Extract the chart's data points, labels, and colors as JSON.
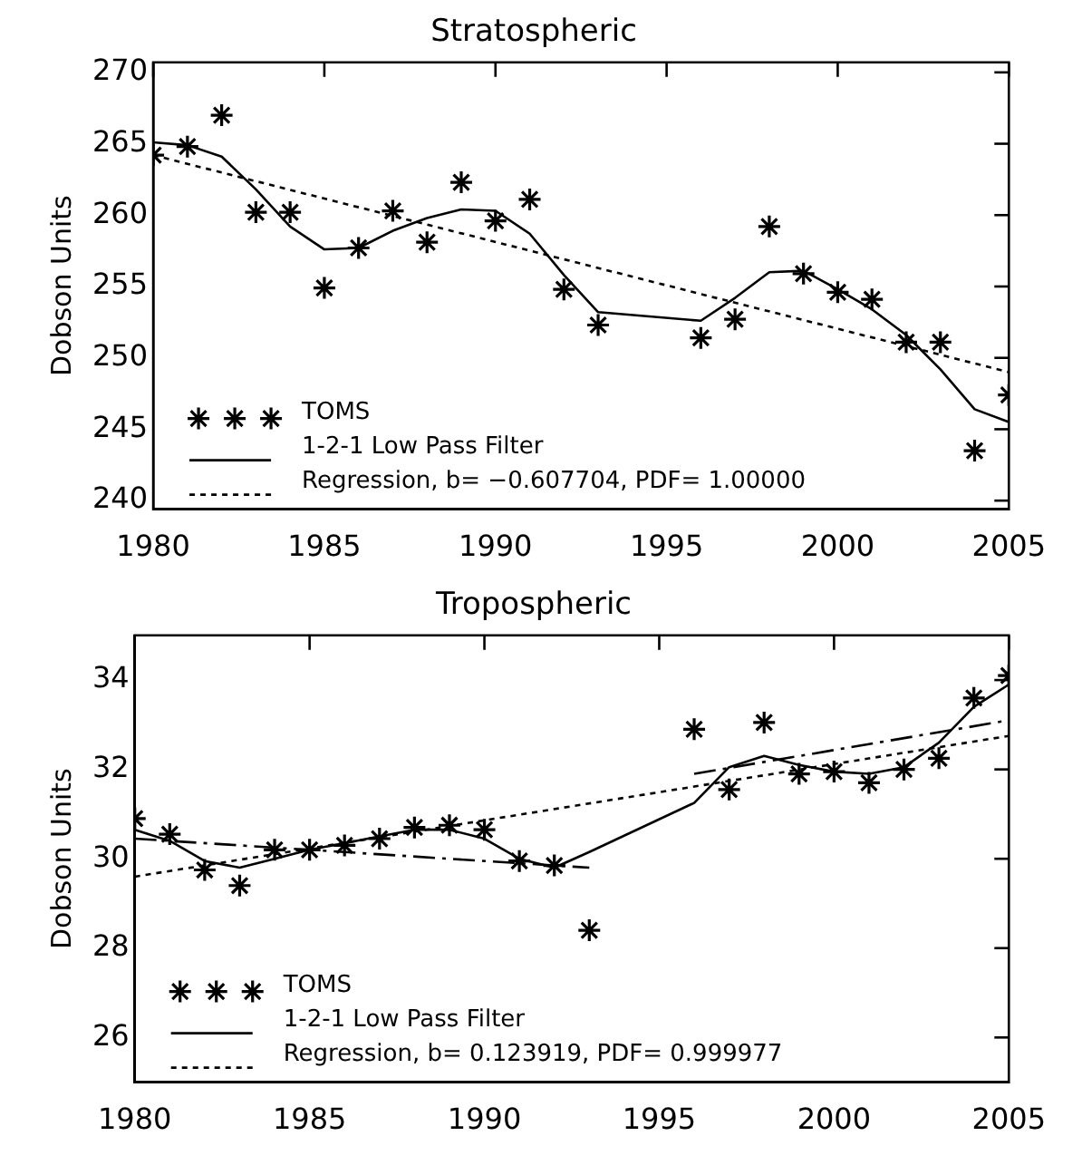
{
  "chart_data": [
    {
      "type": "scatter",
      "title": "Stratospheric",
      "ylabel": "Dobson Units",
      "xlim": [
        1980,
        2005
      ],
      "xticks": [
        1980,
        1985,
        1990,
        1995,
        2000,
        2005
      ],
      "ylim": [
        239.4,
        270.7
      ],
      "yticks": [
        240,
        245,
        250,
        255,
        260,
        265,
        270
      ],
      "grid": false,
      "legend": "bottom left",
      "series": [
        {
          "name": "TOMS",
          "marker": "cross",
          "color": "#000000",
          "x": [
            1980,
            1981,
            1982,
            1983,
            1984,
            1985,
            1986,
            1987,
            1988,
            1989,
            1990,
            1991,
            1992,
            1993,
            1996,
            1997,
            1998,
            1999,
            2000,
            2001,
            2002,
            2003,
            2004,
            2005
          ],
          "values": [
            264.2,
            264.8,
            267,
            260.2,
            260.2,
            254.9,
            257.7,
            260.3,
            258.1,
            262.3,
            259.6,
            261.1,
            254.8,
            252.3,
            251.4,
            252.7,
            259.2,
            255.9,
            254.6,
            254.1,
            251.1,
            251.1,
            243.5,
            247.4
          ]
        },
        {
          "name": "1-2-1 Low Pass Filter",
          "type": "line",
          "line_style": "solid",
          "color": "#000000",
          "x": [
            1980,
            1981,
            1982,
            1983,
            1984,
            1985,
            1986,
            1987,
            1988,
            1989,
            1990,
            1991,
            1992,
            1993,
            1996,
            1997,
            1998,
            1999,
            2000,
            2001,
            2002,
            2003,
            2004,
            2005
          ],
          "values": [
            265.1,
            264.9,
            264.1,
            261.8,
            259.2,
            257.6,
            257.7,
            258.9,
            259.8,
            260.4,
            260.3,
            258.7,
            255.8,
            253.2,
            252.6,
            254.2,
            256,
            256.1,
            254.8,
            253.4,
            251.6,
            249.2,
            246.4,
            245.5
          ]
        },
        {
          "name": "Regression, b= −0.607704, PDF= 1.00000",
          "type": "line",
          "line_style": "dotted",
          "color": "#000000",
          "x": [
            1980,
            2005
          ],
          "values": [
            264.2,
            249.0
          ]
        }
      ]
    },
    {
      "type": "scatter",
      "title": "Tropospheric",
      "ylabel": "Dobson Units",
      "xlim": [
        1980,
        2005
      ],
      "xticks": [
        1980,
        1985,
        1990,
        1995,
        2000,
        2005
      ],
      "ylim": [
        25,
        35
      ],
      "yticks": [
        26,
        28,
        30,
        32,
        34
      ],
      "grid": false,
      "legend": "bottom left",
      "series": [
        {
          "name": "TOMS",
          "marker": "cross",
          "color": "#000000",
          "x": [
            1980,
            1981,
            1982,
            1983,
            1984,
            1985,
            1986,
            1987,
            1988,
            1989,
            1990,
            1991,
            1992,
            1993,
            1996,
            1997,
            1998,
            1999,
            2000,
            2001,
            2002,
            2003,
            2004,
            2005
          ],
          "values": [
            30.9,
            30.55,
            29.75,
            29.4,
            30.2,
            30.2,
            30.3,
            30.45,
            30.7,
            30.75,
            30.65,
            29.95,
            29.85,
            28.4,
            32.9,
            31.55,
            33.05,
            31.9,
            31.95,
            31.7,
            32.0,
            32.25,
            33.6,
            34.1
          ]
        },
        {
          "name": "1-2-1 Low Pass Filter",
          "type": "line",
          "line_style": "solid",
          "color": "#000000",
          "x": [
            1980,
            1981,
            1982,
            1983,
            1984,
            1985,
            1986,
            1987,
            1988,
            1989,
            1990,
            1991,
            1992,
            1993,
            1996,
            1997,
            1998,
            1999,
            2000,
            2001,
            2002,
            2003,
            2004,
            2005
          ],
          "values": [
            30.65,
            30.4,
            29.95,
            29.8,
            30.0,
            30.2,
            30.35,
            30.5,
            30.65,
            30.65,
            30.45,
            30.0,
            29.8,
            30.15,
            31.25,
            32.05,
            32.3,
            32.1,
            31.95,
            31.9,
            32.05,
            32.6,
            33.4,
            33.9
          ]
        },
        {
          "name": "Regression, b= 0.123919, PDF= 0.999977",
          "type": "line",
          "line_style": "dotted",
          "color": "#000000",
          "x": [
            1980,
            2005
          ],
          "values": [
            29.6,
            32.75
          ]
        },
        {
          "type": "line",
          "line_style": "dashed",
          "color": "#000000",
          "x": [
            1980,
            1993
          ],
          "values": [
            30.45,
            29.8
          ]
        },
        {
          "type": "line",
          "line_style": "dashed",
          "color": "#000000",
          "x": [
            1996,
            2005
          ],
          "values": [
            31.9,
            33.1
          ]
        }
      ]
    }
  ]
}
